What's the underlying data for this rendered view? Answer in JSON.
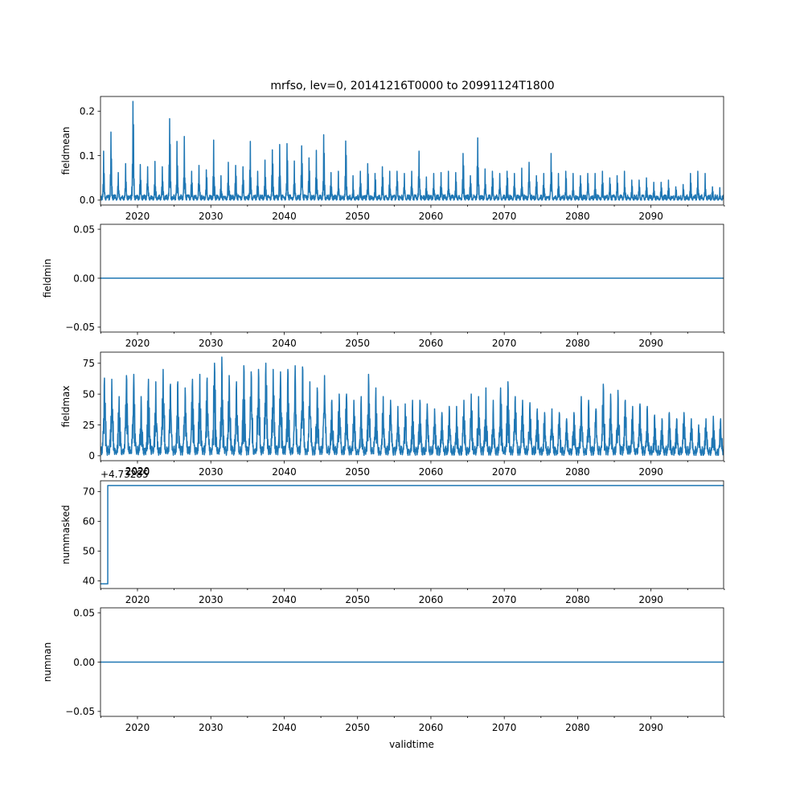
{
  "figure": {
    "title": "mrfso, lev=0, 20141216T0000 to 20991124T1800",
    "xlabel": "validtime"
  },
  "chart_data": [
    {
      "type": "line",
      "id": "fieldmean",
      "ylabel": "fieldmean",
      "xlim": [
        2014.96,
        2099.9
      ],
      "ylim": [
        -0.011,
        0.233
      ],
      "x_ticks": [
        2020,
        2030,
        2040,
        2050,
        2060,
        2070,
        2080,
        2090
      ],
      "y_ticks": [
        0.0,
        0.1,
        0.2
      ],
      "y_tick_labels": [
        "0.0",
        "0.1",
        "0.2"
      ],
      "peaks": [
        {
          "x": 2015.4,
          "y": 0.11
        },
        {
          "x": 2016.4,
          "y": 0.153
        },
        {
          "x": 2017.4,
          "y": 0.062
        },
        {
          "x": 2018.4,
          "y": 0.082
        },
        {
          "x": 2019.4,
          "y": 0.222
        },
        {
          "x": 2020.4,
          "y": 0.08
        },
        {
          "x": 2021.4,
          "y": 0.075
        },
        {
          "x": 2022.4,
          "y": 0.087
        },
        {
          "x": 2023.4,
          "y": 0.075
        },
        {
          "x": 2024.4,
          "y": 0.183
        },
        {
          "x": 2025.4,
          "y": 0.132
        },
        {
          "x": 2026.4,
          "y": 0.143
        },
        {
          "x": 2027.4,
          "y": 0.065
        },
        {
          "x": 2028.4,
          "y": 0.078
        },
        {
          "x": 2029.4,
          "y": 0.068
        },
        {
          "x": 2030.4,
          "y": 0.135
        },
        {
          "x": 2031.4,
          "y": 0.055
        },
        {
          "x": 2032.4,
          "y": 0.085
        },
        {
          "x": 2033.4,
          "y": 0.078
        },
        {
          "x": 2034.4,
          "y": 0.075
        },
        {
          "x": 2035.4,
          "y": 0.132
        },
        {
          "x": 2036.4,
          "y": 0.065
        },
        {
          "x": 2037.4,
          "y": 0.09
        },
        {
          "x": 2038.4,
          "y": 0.113
        },
        {
          "x": 2039.4,
          "y": 0.125
        },
        {
          "x": 2040.4,
          "y": 0.127
        },
        {
          "x": 2041.4,
          "y": 0.088
        },
        {
          "x": 2042.4,
          "y": 0.122
        },
        {
          "x": 2043.4,
          "y": 0.095
        },
        {
          "x": 2044.4,
          "y": 0.112
        },
        {
          "x": 2045.4,
          "y": 0.147
        },
        {
          "x": 2046.4,
          "y": 0.062
        },
        {
          "x": 2047.4,
          "y": 0.065
        },
        {
          "x": 2048.4,
          "y": 0.133
        },
        {
          "x": 2049.4,
          "y": 0.055
        },
        {
          "x": 2050.4,
          "y": 0.065
        },
        {
          "x": 2051.4,
          "y": 0.082
        },
        {
          "x": 2052.4,
          "y": 0.06
        },
        {
          "x": 2053.4,
          "y": 0.075
        },
        {
          "x": 2054.4,
          "y": 0.065
        },
        {
          "x": 2055.4,
          "y": 0.065
        },
        {
          "x": 2056.4,
          "y": 0.06
        },
        {
          "x": 2057.4,
          "y": 0.065
        },
        {
          "x": 2058.4,
          "y": 0.11
        },
        {
          "x": 2059.4,
          "y": 0.052
        },
        {
          "x": 2060.4,
          "y": 0.06
        },
        {
          "x": 2061.4,
          "y": 0.062
        },
        {
          "x": 2062.4,
          "y": 0.065
        },
        {
          "x": 2063.4,
          "y": 0.062
        },
        {
          "x": 2064.4,
          "y": 0.105
        },
        {
          "x": 2065.4,
          "y": 0.055
        },
        {
          "x": 2066.4,
          "y": 0.14
        },
        {
          "x": 2067.4,
          "y": 0.07
        },
        {
          "x": 2068.4,
          "y": 0.065
        },
        {
          "x": 2069.4,
          "y": 0.06
        },
        {
          "x": 2070.4,
          "y": 0.065
        },
        {
          "x": 2071.4,
          "y": 0.06
        },
        {
          "x": 2072.4,
          "y": 0.072
        },
        {
          "x": 2073.4,
          "y": 0.085
        },
        {
          "x": 2074.4,
          "y": 0.055
        },
        {
          "x": 2075.4,
          "y": 0.06
        },
        {
          "x": 2076.4,
          "y": 0.105
        },
        {
          "x": 2077.4,
          "y": 0.06
        },
        {
          "x": 2078.4,
          "y": 0.065
        },
        {
          "x": 2079.4,
          "y": 0.06
        },
        {
          "x": 2080.4,
          "y": 0.055
        },
        {
          "x": 2081.4,
          "y": 0.06
        },
        {
          "x": 2082.4,
          "y": 0.06
        },
        {
          "x": 2083.4,
          "y": 0.065
        },
        {
          "x": 2084.4,
          "y": 0.05
        },
        {
          "x": 2085.4,
          "y": 0.055
        },
        {
          "x": 2086.4,
          "y": 0.065
        },
        {
          "x": 2087.4,
          "y": 0.045
        },
        {
          "x": 2088.4,
          "y": 0.045
        },
        {
          "x": 2089.4,
          "y": 0.05
        },
        {
          "x": 2090.4,
          "y": 0.04
        },
        {
          "x": 2091.4,
          "y": 0.04
        },
        {
          "x": 2092.4,
          "y": 0.045
        },
        {
          "x": 2093.4,
          "y": 0.03
        },
        {
          "x": 2094.4,
          "y": 0.035
        },
        {
          "x": 2095.4,
          "y": 0.06
        },
        {
          "x": 2096.4,
          "y": 0.065
        },
        {
          "x": 2097.4,
          "y": 0.06
        },
        {
          "x": 2098.4,
          "y": 0.03
        },
        {
          "x": 2099.4,
          "y": 0.028
        }
      ]
    },
    {
      "type": "line",
      "id": "fieldmin",
      "ylabel": "fieldmin",
      "xlim": [
        2014.96,
        2099.9
      ],
      "ylim": [
        -0.055,
        0.055
      ],
      "x_ticks": [
        2020,
        2030,
        2040,
        2050,
        2060,
        2070,
        2080,
        2090
      ],
      "y_ticks": [
        -0.05,
        0.0,
        0.05
      ],
      "y_tick_labels": [
        "−0.05",
        "0.00",
        "0.05"
      ],
      "constant_value": 0.0
    },
    {
      "type": "line",
      "id": "fieldmax",
      "ylabel": "fieldmax",
      "xlim": [
        2014.96,
        2099.9
      ],
      "ylim": [
        -4,
        84
      ],
      "x_ticks": [
        2020,
        2030,
        2040,
        2050,
        2060,
        2070,
        2080,
        2090
      ],
      "y_ticks": [
        0,
        25,
        50,
        75
      ],
      "y_tick_labels": [
        "0",
        "25",
        "50",
        "75"
      ],
      "peaks": [
        {
          "x": 2015.5,
          "y": 63
        },
        {
          "x": 2016.5,
          "y": 62
        },
        {
          "x": 2017.5,
          "y": 48
        },
        {
          "x": 2018.5,
          "y": 65
        },
        {
          "x": 2019.5,
          "y": 66
        },
        {
          "x": 2020.5,
          "y": 48
        },
        {
          "x": 2021.5,
          "y": 62
        },
        {
          "x": 2022.5,
          "y": 60
        },
        {
          "x": 2023.5,
          "y": 70
        },
        {
          "x": 2024.5,
          "y": 58
        },
        {
          "x": 2025.5,
          "y": 60
        },
        {
          "x": 2026.5,
          "y": 55
        },
        {
          "x": 2027.5,
          "y": 62
        },
        {
          "x": 2028.5,
          "y": 66
        },
        {
          "x": 2029.5,
          "y": 63
        },
        {
          "x": 2030.5,
          "y": 75
        },
        {
          "x": 2031.5,
          "y": 80
        },
        {
          "x": 2032.5,
          "y": 65
        },
        {
          "x": 2033.5,
          "y": 60
        },
        {
          "x": 2034.5,
          "y": 73
        },
        {
          "x": 2035.5,
          "y": 68
        },
        {
          "x": 2036.5,
          "y": 70
        },
        {
          "x": 2037.5,
          "y": 75
        },
        {
          "x": 2038.5,
          "y": 70
        },
        {
          "x": 2039.5,
          "y": 68
        },
        {
          "x": 2040.5,
          "y": 70
        },
        {
          "x": 2041.5,
          "y": 73
        },
        {
          "x": 2042.5,
          "y": 72
        },
        {
          "x": 2043.5,
          "y": 60
        },
        {
          "x": 2044.5,
          "y": 55
        },
        {
          "x": 2045.5,
          "y": 65
        },
        {
          "x": 2046.5,
          "y": 45
        },
        {
          "x": 2047.5,
          "y": 50
        },
        {
          "x": 2048.5,
          "y": 50
        },
        {
          "x": 2049.5,
          "y": 45
        },
        {
          "x": 2050.5,
          "y": 48
        },
        {
          "x": 2051.5,
          "y": 66
        },
        {
          "x": 2052.5,
          "y": 55
        },
        {
          "x": 2053.5,
          "y": 48
        },
        {
          "x": 2054.5,
          "y": 45
        },
        {
          "x": 2055.5,
          "y": 40
        },
        {
          "x": 2056.5,
          "y": 42
        },
        {
          "x": 2057.5,
          "y": 45
        },
        {
          "x": 2058.5,
          "y": 45
        },
        {
          "x": 2059.5,
          "y": 42
        },
        {
          "x": 2060.5,
          "y": 38
        },
        {
          "x": 2061.5,
          "y": 35
        },
        {
          "x": 2062.5,
          "y": 40
        },
        {
          "x": 2063.5,
          "y": 40
        },
        {
          "x": 2064.5,
          "y": 45
        },
        {
          "x": 2065.5,
          "y": 50
        },
        {
          "x": 2066.5,
          "y": 48
        },
        {
          "x": 2067.5,
          "y": 55
        },
        {
          "x": 2068.5,
          "y": 45
        },
        {
          "x": 2069.5,
          "y": 55
        },
        {
          "x": 2070.5,
          "y": 60
        },
        {
          "x": 2071.5,
          "y": 48
        },
        {
          "x": 2072.5,
          "y": 45
        },
        {
          "x": 2073.5,
          "y": 43
        },
        {
          "x": 2074.5,
          "y": 38
        },
        {
          "x": 2075.5,
          "y": 35
        },
        {
          "x": 2076.5,
          "y": 38
        },
        {
          "x": 2077.5,
          "y": 35
        },
        {
          "x": 2078.5,
          "y": 30
        },
        {
          "x": 2079.5,
          "y": 35
        },
        {
          "x": 2080.5,
          "y": 48
        },
        {
          "x": 2081.5,
          "y": 45
        },
        {
          "x": 2082.5,
          "y": 38
        },
        {
          "x": 2083.5,
          "y": 58
        },
        {
          "x": 2084.5,
          "y": 50
        },
        {
          "x": 2085.5,
          "y": 53
        },
        {
          "x": 2086.5,
          "y": 45
        },
        {
          "x": 2087.5,
          "y": 40
        },
        {
          "x": 2088.5,
          "y": 42
        },
        {
          "x": 2089.5,
          "y": 40
        },
        {
          "x": 2090.5,
          "y": 33
        },
        {
          "x": 2091.5,
          "y": 30
        },
        {
          "x": 2092.5,
          "y": 35
        },
        {
          "x": 2093.5,
          "y": 30
        },
        {
          "x": 2094.5,
          "y": 35
        },
        {
          "x": 2095.5,
          "y": 30
        },
        {
          "x": 2096.5,
          "y": 25
        },
        {
          "x": 2097.5,
          "y": 30
        },
        {
          "x": 2098.5,
          "y": 32
        },
        {
          "x": 2099.5,
          "y": 30
        }
      ]
    },
    {
      "type": "line",
      "id": "nummasked",
      "ylabel": "nummasked",
      "offset_label": "+4.73285",
      "xlim": [
        2014.96,
        2099.9
      ],
      "ylim": [
        37.4,
        73.6
      ],
      "x_ticks": [
        2020,
        2030,
        2040,
        2050,
        2060,
        2070,
        2080,
        2090
      ],
      "y_ticks": [
        40,
        50,
        60,
        70
      ],
      "y_tick_labels": [
        "40",
        "50",
        "60",
        "70"
      ],
      "x": [
        2014.96,
        2015.95,
        2015.95,
        2099.9
      ],
      "y": [
        39,
        39,
        72,
        72
      ]
    },
    {
      "type": "line",
      "id": "numnan",
      "ylabel": "numnan",
      "xlim": [
        2014.96,
        2099.9
      ],
      "ylim": [
        -0.055,
        0.055
      ],
      "x_ticks": [
        2020,
        2030,
        2040,
        2050,
        2060,
        2070,
        2080,
        2090
      ],
      "y_ticks": [
        -0.05,
        0.0,
        0.05
      ],
      "y_tick_labels": [
        "−0.05",
        "0.00",
        "0.05"
      ],
      "constant_value": 0.0
    }
  ]
}
